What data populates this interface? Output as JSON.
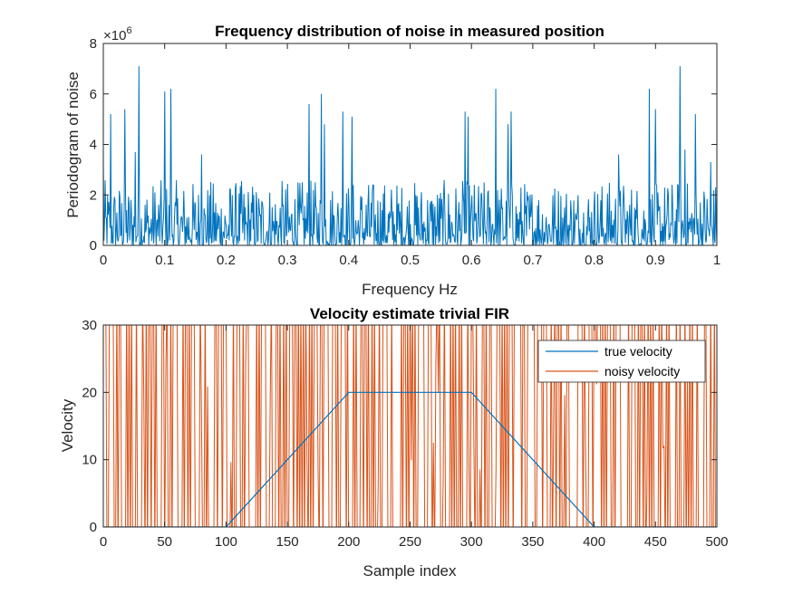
{
  "chart_data": [
    {
      "type": "line",
      "title": "Frequency distribution of noise in measured position",
      "xlabel": "Frequency Hz",
      "ylabel": "Periodogram of noise",
      "y_exponent_base": "×10",
      "y_exponent_power": "6",
      "xlim": [
        0,
        1
      ],
      "ylim": [
        0,
        8
      ],
      "xticks": [
        "0",
        "0.1",
        "0.2",
        "0.3",
        "0.4",
        "0.5",
        "0.6",
        "0.7",
        "0.8",
        "0.9",
        "1"
      ],
      "yticks": [
        "0",
        "2",
        "4",
        "6",
        "8"
      ],
      "grid": false,
      "series": [
        {
          "color": "#0072BD",
          "peaks_x": [
            0.0,
            0.012,
            0.035,
            0.052,
            0.058,
            0.1,
            0.11,
            0.16,
            0.335,
            0.355,
            0.36,
            0.39,
            0.405,
            0.59,
            0.595,
            0.64,
            0.66,
            0.665,
            0.84,
            0.89,
            0.9,
            0.94,
            0.948,
            0.965,
            0.99
          ],
          "peaks_y": [
            3.3,
            5.2,
            5.4,
            3.7,
            7.1,
            6.1,
            6.2,
            3.6,
            5.6,
            6.0,
            4.8,
            5.3,
            5.1,
            5.3,
            5.1,
            6.2,
            4.8,
            5.3,
            3.6,
            6.2,
            5.4,
            7.1,
            3.8,
            5.2,
            3.3
          ],
          "noise_level": 1.0,
          "n_points": 1000
        }
      ]
    },
    {
      "type": "line",
      "title": "Velocity estimate trivial FIR",
      "xlabel": "Sample index",
      "ylabel": "Velocity",
      "xlim": [
        0,
        500
      ],
      "ylim": [
        0,
        30
      ],
      "xticks": [
        "0",
        "50",
        "100",
        "150",
        "200",
        "250",
        "300",
        "350",
        "400",
        "450",
        "500"
      ],
      "yticks": [
        "0",
        "10",
        "20",
        "30"
      ],
      "grid": false,
      "legend_position": "top-right",
      "series": [
        {
          "name": "true velocity",
          "color": "#0072BD",
          "x": [
            0,
            100,
            200,
            300,
            400,
            500
          ],
          "y": [
            0,
            0,
            20,
            20,
            0,
            0
          ]
        },
        {
          "name": "noisy velocity",
          "color": "#D95319",
          "n_points": 500,
          "range": [
            0,
            30
          ],
          "note_visible": "dense oscillation clipped at axis limits"
        }
      ]
    }
  ]
}
